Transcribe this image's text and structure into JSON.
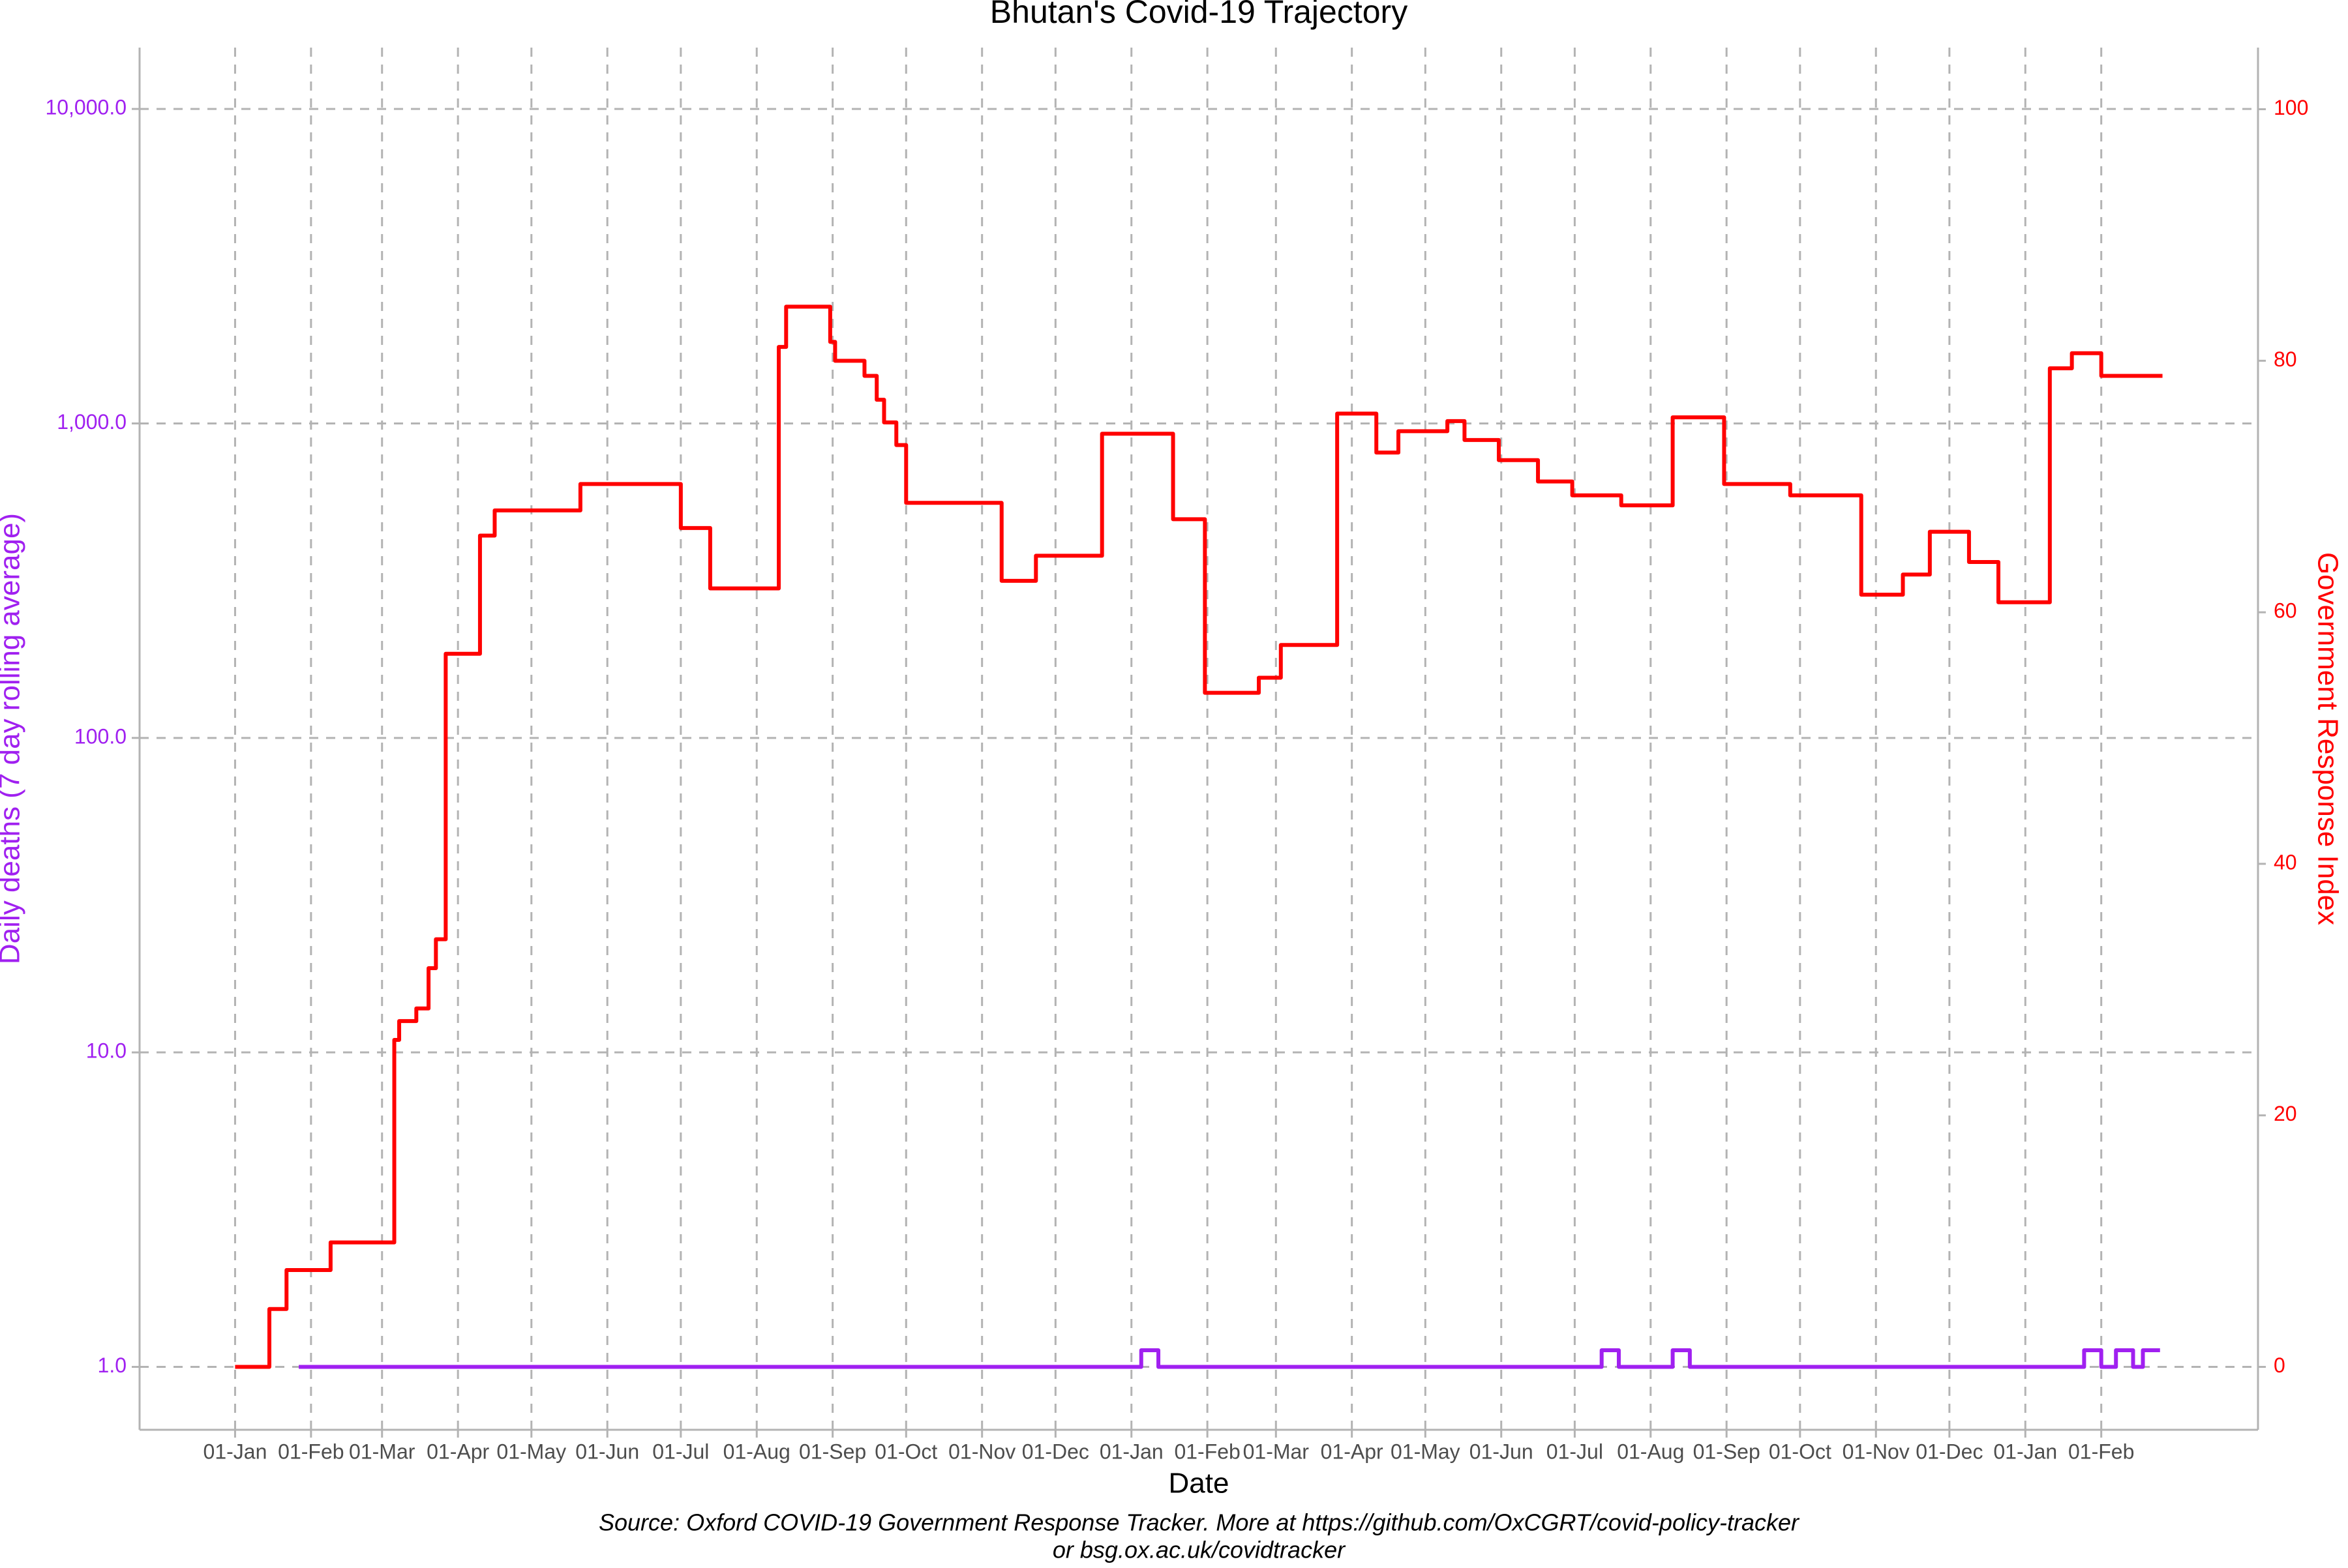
{
  "chart_data": {
    "type": "line",
    "title": "Bhutan's Covid-19 Trajectory",
    "x_label": "Date",
    "y_label": "Daily deaths (7 day rolling average)",
    "y2_label": "Government Response Index",
    "caption": [
      "Source: Oxford COVID-19 Government Response Tracker. More at https://github.com/OxCGRT/covid-policy-tracker",
      "or bsg.ox.ac.uk/covidtracker"
    ],
    "yscale": "log",
    "grid": true,
    "xlim": [
      -39,
      826
    ],
    "xticks": [
      {
        "value": 0,
        "label": "01-Jan"
      },
      {
        "value": 31,
        "label": "01-Feb"
      },
      {
        "value": 60,
        "label": "01-Mar"
      },
      {
        "value": 91,
        "label": "01-Apr"
      },
      {
        "value": 121,
        "label": "01-May"
      },
      {
        "value": 152,
        "label": "01-Jun"
      },
      {
        "value": 182,
        "label": "01-Jul"
      },
      {
        "value": 213,
        "label": "01-Aug"
      },
      {
        "value": 244,
        "label": "01-Sep"
      },
      {
        "value": 274,
        "label": "01-Oct"
      },
      {
        "value": 305,
        "label": "01-Nov"
      },
      {
        "value": 335,
        "label": "01-Dec"
      },
      {
        "value": 366,
        "label": "01-Jan"
      },
      {
        "value": 397,
        "label": "01-Feb"
      },
      {
        "value": 425,
        "label": "01-Mar"
      },
      {
        "value": 456,
        "label": "01-Apr"
      },
      {
        "value": 486,
        "label": "01-May"
      },
      {
        "value": 517,
        "label": "01-Jun"
      },
      {
        "value": 547,
        "label": "01-Jul"
      },
      {
        "value": 578,
        "label": "01-Aug"
      },
      {
        "value": 609,
        "label": "01-Sep"
      },
      {
        "value": 639,
        "label": "01-Oct"
      },
      {
        "value": 670,
        "label": "01-Nov"
      },
      {
        "value": 700,
        "label": "01-Dec"
      },
      {
        "value": 731,
        "label": "01-Jan"
      },
      {
        "value": 762,
        "label": "01-Feb"
      }
    ],
    "ylim": [
      0.631,
      15670
    ],
    "yticks": [
      {
        "value": 1,
        "label": "1.0"
      },
      {
        "value": 10,
        "label": "10.0"
      },
      {
        "value": 100,
        "label": "100.0"
      },
      {
        "value": 1000,
        "label": "1,000.0"
      },
      {
        "value": 10000,
        "label": "10,000.0"
      }
    ],
    "y_color": "#a020f0",
    "y2lim": [
      -5,
      104.9
    ],
    "y2ticks": [
      0,
      20,
      40,
      60,
      80,
      100
    ],
    "y2_color": "#ff0000",
    "series": [
      {
        "color": "#a020f0",
        "x": [
          26,
          370,
          370,
          377,
          377,
          558,
          558,
          565,
          565,
          587,
          587,
          594,
          594,
          755,
          755,
          762,
          762,
          768,
          768,
          775,
          775,
          779,
          779,
          786
        ],
        "values": [
          1,
          1,
          1.13,
          1.13,
          1,
          1,
          1.13,
          1.13,
          1,
          1,
          1.13,
          1.13,
          1,
          1,
          1.13,
          1.13,
          1,
          1,
          1.13,
          1.13,
          1,
          1,
          1.13,
          1.13
        ]
      },
      {
        "color": "#ff0000",
        "axis": "y2",
        "x": [
          0,
          14,
          14,
          21,
          21,
          39,
          39,
          65,
          65,
          67,
          67,
          74,
          74,
          79,
          79,
          82,
          82,
          86,
          86,
          100,
          100,
          106,
          106,
          141,
          141,
          182,
          182,
          194,
          194,
          222,
          222,
          225,
          225,
          243,
          243,
          245,
          245,
          257,
          257,
          262,
          262,
          265,
          265,
          270,
          270,
          274,
          274,
          313,
          313,
          327,
          327,
          354,
          354,
          383,
          383,
          396,
          396,
          418,
          418,
          427,
          427,
          450,
          450,
          466,
          466,
          475,
          475,
          495,
          495,
          502,
          502,
          516,
          516,
          532,
          532,
          546,
          546,
          566,
          566,
          587,
          587,
          608,
          608,
          635,
          635,
          664,
          664,
          681,
          681,
          692,
          692,
          708,
          708,
          720,
          720,
          741,
          741,
          750,
          750,
          762,
          762,
          787
        ],
        "values": [
          0,
          0,
          4.6,
          4.6,
          7.7,
          7.7,
          9.9,
          9.9,
          26,
          26,
          27.5,
          27.5,
          28.5,
          28.5,
          31.7,
          31.7,
          34,
          34,
          56.7,
          56.7,
          66.1,
          66.1,
          68.1,
          68.1,
          70.2,
          70.2,
          66.7,
          66.7,
          61.9,
          61.9,
          81.1,
          81.1,
          84.3,
          84.3,
          81.5,
          81.5,
          80,
          80,
          78.8,
          78.8,
          76.9,
          76.9,
          75.1,
          75.1,
          73.3,
          73.3,
          68.7,
          68.7,
          62.5,
          62.5,
          64.5,
          64.5,
          74.2,
          74.2,
          67.4,
          67.4,
          53.6,
          53.6,
          54.8,
          54.8,
          57.4,
          57.4,
          75.8,
          75.8,
          72.7,
          72.7,
          74.4,
          74.4,
          75.2,
          75.2,
          73.7,
          73.7,
          72.1,
          72.1,
          70.4,
          70.4,
          69.3,
          69.3,
          68.5,
          68.5,
          75.5,
          75.5,
          70.2,
          70.2,
          69.3,
          69.3,
          61.4,
          61.4,
          63,
          63,
          66.4,
          66.4,
          64,
          64,
          60.8,
          60.8,
          79.4,
          79.4,
          80.6,
          80.6,
          78.8,
          78.8
        ]
      }
    ]
  }
}
